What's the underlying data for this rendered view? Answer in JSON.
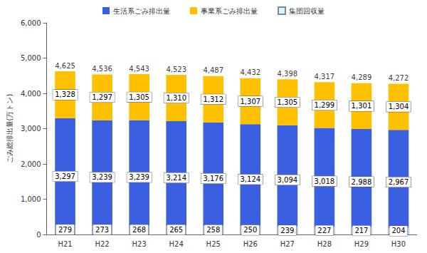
{
  "chart_data": {
    "type": "bar",
    "y_label": "ごみ総排出量(万トン)",
    "categories": [
      "H21",
      "H22",
      "H23",
      "H24",
      "H25",
      "H26",
      "H27",
      "H28",
      "H29",
      "H30"
    ],
    "series": [
      {
        "name": "生活系ごみ排出量",
        "type": "bar",
        "color": "#3a5fe0",
        "values": [
          3297,
          3239,
          3239,
          3214,
          3176,
          3124,
          3094,
          3018,
          2988,
          2967
        ],
        "value_labels": [
          "3,297",
          "3,239",
          "3,239",
          "3,214",
          "3,176",
          "3,124",
          "3,094",
          "3,018",
          "2,988",
          "2,967"
        ]
      },
      {
        "name": "事業系ごみ排出量",
        "type": "bar",
        "color": "#ffc000",
        "values": [
          1328,
          1297,
          1305,
          1310,
          1312,
          1307,
          1305,
          1299,
          1301,
          1304
        ],
        "value_labels": [
          "1,328",
          "1,297",
          "1,305",
          "1,310",
          "1,312",
          "1,307",
          "1,305",
          "1,299",
          "1,301",
          "1,304"
        ]
      },
      {
        "name": "集団回収量",
        "type": "overlay",
        "color": "#dcf2f8",
        "values": [
          279,
          273,
          268,
          265,
          258,
          250,
          239,
          227,
          217,
          204
        ]
      }
    ],
    "totals": [
      4625,
      4536,
      4543,
      4523,
      4487,
      4432,
      4398,
      4317,
      4289,
      4272
    ],
    "total_labels": [
      "4,625",
      "4,536",
      "4,543",
      "4,523",
      "4,487",
      "4,432",
      "4,398",
      "4,317",
      "4,289",
      "4,272"
    ],
    "ylim": [
      0,
      6000
    ],
    "yticks": [
      0,
      {
        "value": 1000,
        "label": "1,000"
      },
      {
        "value": 2000,
        "label": "2,000"
      },
      {
        "value": 3000,
        "label": "3,000"
      },
      {
        "value": 4000,
        "label": "4,000"
      },
      {
        "value": 5000,
        "label": "5,000"
      },
      {
        "value": 6000,
        "label": "6,000"
      }
    ],
    "stacked": true,
    "data_labels": true,
    "grid": false,
    "legend": "top"
  }
}
